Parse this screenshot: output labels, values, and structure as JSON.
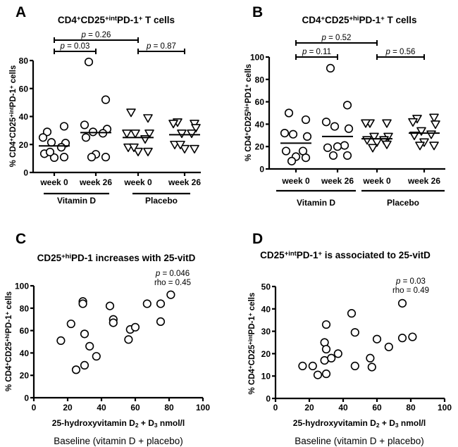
{
  "chart_data": [
    {
      "panel": "A",
      "type": "scatter",
      "subtype": "dot-plot",
      "title_segments": [
        [
          "CD4",
          ""
        ],
        [
          "+",
          "sup"
        ],
        [
          "CD25",
          ""
        ],
        [
          "+int",
          "sup"
        ],
        [
          "PD-1",
          ""
        ],
        [
          "+",
          "sup"
        ],
        [
          " T cells",
          ""
        ]
      ],
      "ylabel_segments": [
        [
          "% CD4",
          ""
        ],
        [
          "+",
          "sup"
        ],
        [
          "CD25",
          ""
        ],
        [
          "+int",
          "sup"
        ],
        [
          "PD-1",
          ""
        ],
        [
          "+",
          "sup"
        ],
        [
          " cells",
          ""
        ]
      ],
      "ylim": [
        0,
        80
      ],
      "yticks": [
        0,
        20,
        40,
        60,
        80
      ],
      "categories": [
        "week 0",
        "week 26",
        "week 0",
        "week 26"
      ],
      "groups": [
        "Vitamin D",
        "Placebo"
      ],
      "series": [
        {
          "name": "Vitamin D week 0",
          "marker": "circle",
          "values": [
            29,
            33,
            25,
            21,
            21.5,
            18,
            13.4,
            10.6,
            11,
            14.6
          ],
          "median": 19
        },
        {
          "name": "Vitamin D week 26",
          "marker": "circle",
          "values": [
            79,
            52,
            34,
            31,
            29,
            28,
            25,
            13,
            11,
            11
          ],
          "median": 28.5
        },
        {
          "name": "Placebo week 0",
          "marker": "triangle-down",
          "values": [
            43,
            39,
            28,
            28,
            28,
            24,
            18,
            15,
            15,
            18
          ],
          "median": 25
        },
        {
          "name": "Placebo week 26",
          "marker": "triangle-down",
          "values": [
            36,
            35,
            35,
            32,
            28,
            28,
            20,
            17,
            17,
            20
          ],
          "median": 27
        }
      ],
      "comparisons": [
        {
          "label": "p = 0.26",
          "from": 0,
          "to": 2
        },
        {
          "label": "p = 0.03",
          "from": 0,
          "to": 1
        },
        {
          "label": "p = 0.87",
          "from": 2,
          "to": 3
        }
      ]
    },
    {
      "panel": "B",
      "type": "scatter",
      "subtype": "dot-plot",
      "title_segments": [
        [
          "CD4",
          ""
        ],
        [
          "+",
          "sup"
        ],
        [
          "CD25",
          ""
        ],
        [
          "+hi",
          "sup"
        ],
        [
          "PD-1",
          ""
        ],
        [
          "+",
          "sup"
        ],
        [
          " T cells",
          ""
        ]
      ],
      "ylabel_segments": [
        [
          "% CD4",
          ""
        ],
        [
          "+",
          "sup"
        ],
        [
          "CD25",
          ""
        ],
        [
          "hi+",
          "sup"
        ],
        [
          "PD1",
          ""
        ],
        [
          "+",
          "sup"
        ],
        [
          " cells",
          ""
        ]
      ],
      "ylim": [
        0,
        100
      ],
      "yticks": [
        0,
        20,
        40,
        60,
        80,
        100
      ],
      "categories": [
        "week 0",
        "week 26",
        "week 0",
        "week 26"
      ],
      "groups": [
        "Vitamin D",
        "Placebo"
      ],
      "series": [
        {
          "name": "Vitamin D week 0",
          "marker": "circle",
          "values": [
            50,
            44,
            32,
            29,
            31,
            16,
            16,
            11,
            10,
            7
          ],
          "median": 23
        },
        {
          "name": "Vitamin D week 26",
          "marker": "circle",
          "values": [
            90,
            57,
            42,
            36,
            38,
            21,
            19,
            20,
            12,
            12
          ],
          "median": 29
        },
        {
          "name": "Placebo week 0",
          "marker": "triangle-down",
          "values": [
            41,
            41,
            41,
            29,
            29,
            26,
            26,
            24,
            22,
            19
          ],
          "median": 27
        },
        {
          "name": "Placebo week 26",
          "marker": "triangle-down",
          "values": [
            45,
            46,
            42,
            40,
            34,
            31,
            30,
            24,
            21,
            21
          ],
          "median": 32
        }
      ],
      "comparisons": [
        {
          "label": "p = 0.52",
          "from": 0,
          "to": 2
        },
        {
          "label": "p = 0.11",
          "from": 0,
          "to": 1
        },
        {
          "label": "p = 0.56",
          "from": 2,
          "to": 3
        }
      ]
    },
    {
      "panel": "C",
      "type": "scatter",
      "title_segments": [
        [
          "CD25",
          ""
        ],
        [
          "+hi",
          "sup"
        ],
        [
          "PD-1 increases with 25-vitD",
          ""
        ]
      ],
      "ylabel_segments": [
        [
          "% CD4",
          ""
        ],
        [
          "+",
          "sup"
        ],
        [
          "CD25",
          ""
        ],
        [
          "+hi",
          "sup"
        ],
        [
          "PD-1",
          ""
        ],
        [
          "+",
          "sup"
        ],
        [
          " cells",
          ""
        ]
      ],
      "xlabel_segments": [
        [
          "25-hydroxyvitamin D",
          ""
        ],
        [
          "2",
          "sub"
        ],
        [
          " + D",
          ""
        ],
        [
          "3",
          "sub"
        ],
        [
          " nmol/l",
          ""
        ]
      ],
      "caption": "Baseline (vitamin D + placebo)",
      "annotation": [
        "p = 0.046",
        "rho = 0.45"
      ],
      "xlim": [
        0,
        100
      ],
      "xticks": [
        0,
        20,
        40,
        60,
        80,
        100
      ],
      "ylim": [
        0,
        100
      ],
      "yticks": [
        0,
        20,
        40,
        60,
        80,
        100
      ],
      "points": [
        [
          16,
          51
        ],
        [
          22,
          66
        ],
        [
          25,
          25
        ],
        [
          29,
          86
        ],
        [
          29,
          84
        ],
        [
          30,
          57
        ],
        [
          30,
          29
        ],
        [
          33,
          46
        ],
        [
          37,
          37
        ],
        [
          45,
          82
        ],
        [
          47,
          70
        ],
        [
          47,
          67
        ],
        [
          56,
          52
        ],
        [
          57,
          61
        ],
        [
          60,
          63
        ],
        [
          67,
          84
        ],
        [
          75,
          84
        ],
        [
          75,
          68
        ],
        [
          81,
          92
        ]
      ]
    },
    {
      "panel": "D",
      "type": "scatter",
      "title_segments": [
        [
          "CD25",
          ""
        ],
        [
          "+int",
          "sup"
        ],
        [
          "PD-1",
          ""
        ],
        [
          "+",
          "sup"
        ],
        [
          " is associated to 25-vitD",
          ""
        ]
      ],
      "ylabel_segments": [
        [
          "% CD4",
          ""
        ],
        [
          "+",
          "sup"
        ],
        [
          "CD25",
          ""
        ],
        [
          "+int",
          "sup"
        ],
        [
          "PD-1",
          ""
        ],
        [
          "+",
          "sup"
        ],
        [
          " cells",
          ""
        ]
      ],
      "xlabel_segments": [
        [
          "25-hydroxyvitamin D",
          ""
        ],
        [
          "2",
          "sub"
        ],
        [
          " + D",
          ""
        ],
        [
          "3",
          "sub"
        ],
        [
          " nmol/l",
          ""
        ]
      ],
      "caption": "Baseline (vitamin D + placebo)",
      "annotation": [
        "p = 0.03",
        "rho = 0.49"
      ],
      "xlim": [
        0,
        100
      ],
      "xticks": [
        0,
        20,
        40,
        60,
        80,
        100
      ],
      "ylim": [
        0,
        50
      ],
      "yticks": [
        0,
        10,
        20,
        30,
        40,
        50
      ],
      "points": [
        [
          16,
          14.5
        ],
        [
          22,
          14.5
        ],
        [
          25,
          10.5
        ],
        [
          29,
          25
        ],
        [
          29,
          17
        ],
        [
          30,
          22
        ],
        [
          30,
          33
        ],
        [
          30,
          11
        ],
        [
          33,
          18
        ],
        [
          37,
          20
        ],
        [
          45,
          38
        ],
        [
          47,
          29.5
        ],
        [
          47,
          14.5
        ],
        [
          56,
          18
        ],
        [
          57,
          14
        ],
        [
          60,
          26.5
        ],
        [
          67,
          23
        ],
        [
          75,
          42.5
        ],
        [
          75,
          27
        ],
        [
          81,
          27.5
        ]
      ]
    }
  ]
}
